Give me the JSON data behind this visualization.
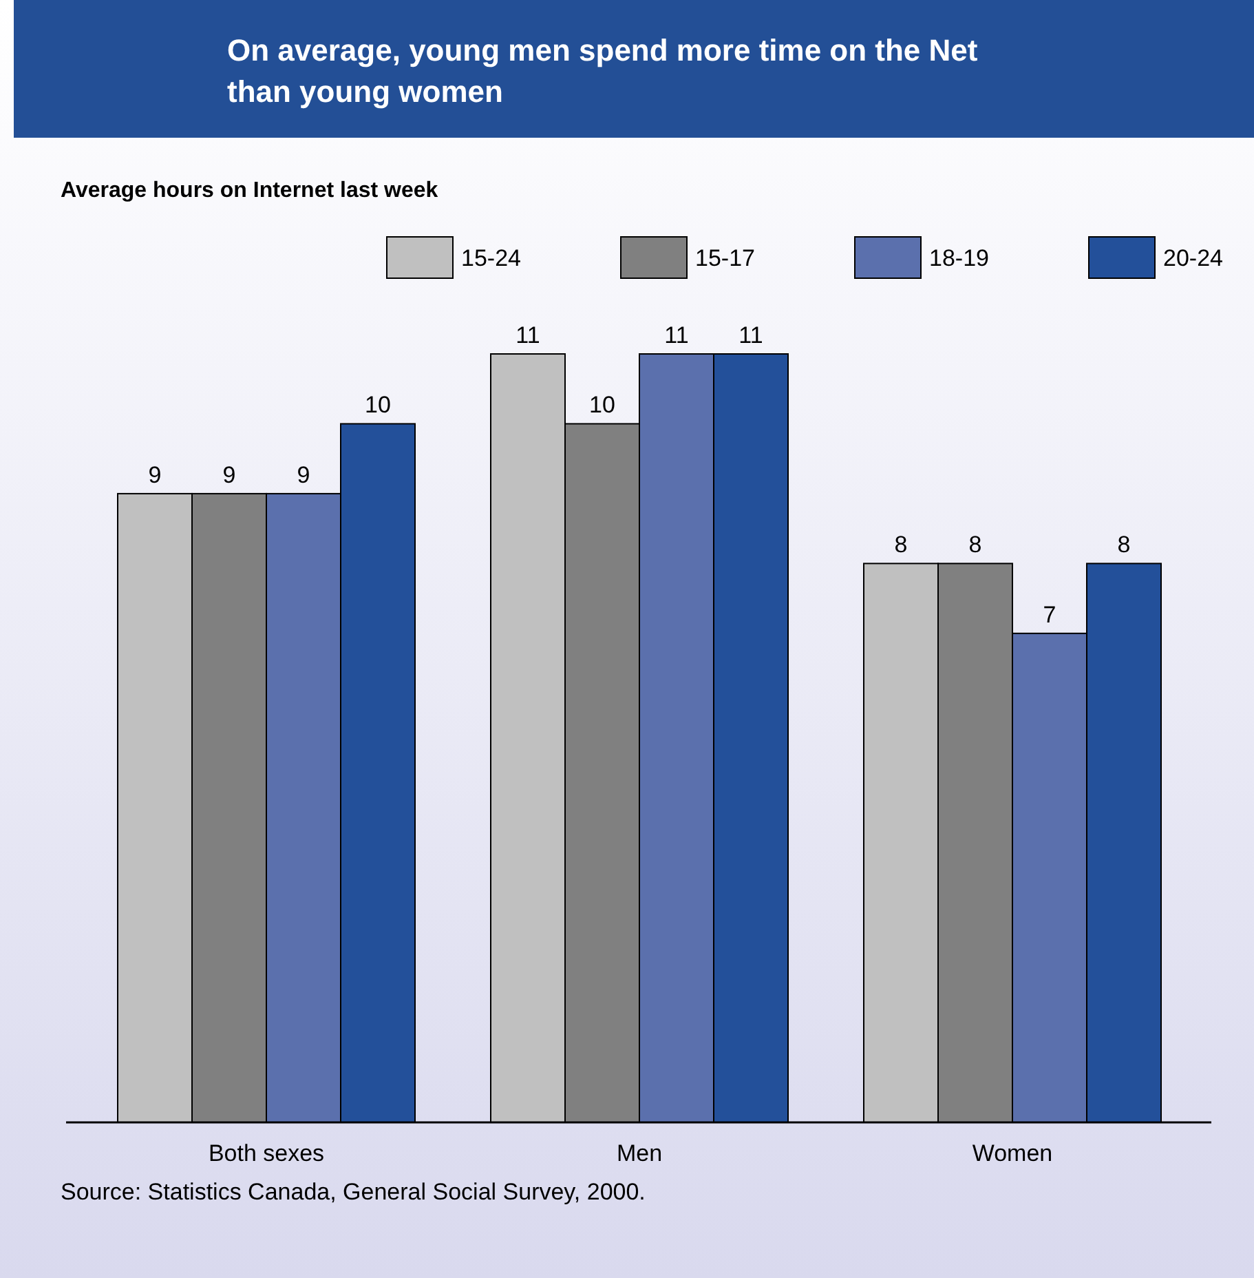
{
  "chart_data": {
    "type": "bar",
    "title": "On average, young men spend more time on the Net than young women",
    "subtitle": "Average hours on Internet last week",
    "categories": [
      "Both sexes",
      "Men",
      "Women"
    ],
    "series": [
      {
        "name": "15-24",
        "color": "#c0c0c0",
        "values": [
          9,
          11,
          8
        ]
      },
      {
        "name": "15-17",
        "color": "#808080",
        "values": [
          9,
          10,
          8
        ]
      },
      {
        "name": "18-19",
        "color": "#5b70ad",
        "values": [
          9,
          11,
          7
        ]
      },
      {
        "name": "20-24",
        "color": "#23509a",
        "values": [
          10,
          11,
          8
        ]
      }
    ],
    "data_labels": true,
    "legend": "top right",
    "grid": false,
    "annotations": [
      "Source: Statistics Canada, General Social Survey, 2000."
    ]
  }
}
